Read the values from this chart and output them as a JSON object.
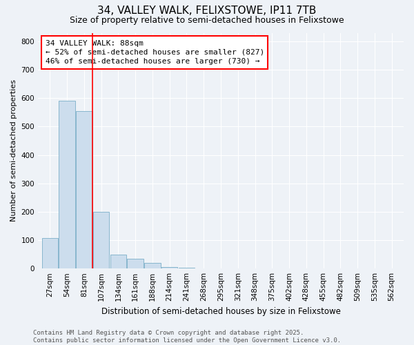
{
  "title": "34, VALLEY WALK, FELIXSTOWE, IP11 7TB",
  "subtitle": "Size of property relative to semi-detached houses in Felixstowe",
  "xlabel": "Distribution of semi-detached houses by size in Felixstowe",
  "ylabel": "Number of semi-detached properties",
  "categories": [
    "27sqm",
    "54sqm",
    "81sqm",
    "107sqm",
    "134sqm",
    "161sqm",
    "188sqm",
    "214sqm",
    "241sqm",
    "268sqm",
    "295sqm",
    "321sqm",
    "348sqm",
    "375sqm",
    "402sqm",
    "428sqm",
    "455sqm",
    "482sqm",
    "509sqm",
    "535sqm",
    "562sqm"
  ],
  "values": [
    107,
    590,
    555,
    200,
    50,
    35,
    20,
    5,
    3,
    0,
    0,
    0,
    0,
    0,
    0,
    0,
    0,
    0,
    0,
    0,
    0
  ],
  "bar_color": "#ccdded",
  "bar_edge_color": "#7aaec8",
  "red_line_x": 2.5,
  "annotation_line1": "34 VALLEY WALK: 88sqm",
  "annotation_line2": "← 52% of semi-detached houses are smaller (827)",
  "annotation_line3": "46% of semi-detached houses are larger (730) →",
  "ylim": [
    0,
    830
  ],
  "yticks": [
    0,
    100,
    200,
    300,
    400,
    500,
    600,
    700,
    800
  ],
  "footer": "Contains HM Land Registry data © Crown copyright and database right 2025.\nContains public sector information licensed under the Open Government Licence v3.0.",
  "background_color": "#eef2f7",
  "title_fontsize": 11,
  "subtitle_fontsize": 9,
  "annotation_fontsize": 8,
  "footer_fontsize": 6.5
}
